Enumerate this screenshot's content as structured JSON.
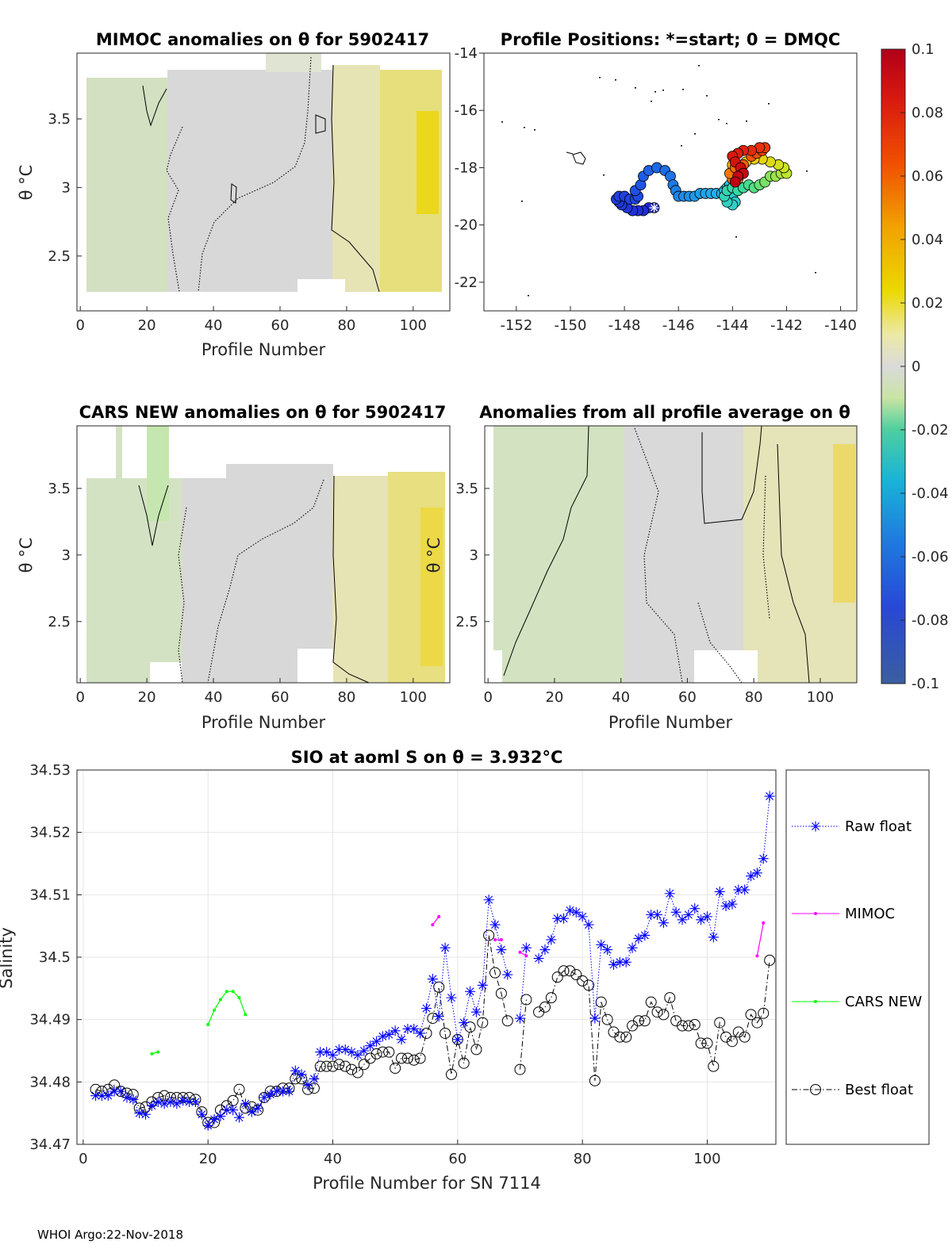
{
  "colors": {
    "raw": "#0000ff",
    "mimoc": "#ff00ff",
    "cars": "#00ff00",
    "best": "#000000",
    "grid": "#e6e6e6",
    "axis": "#262626"
  },
  "chart_data": [
    {
      "id": "mimoc",
      "type": "heatmap",
      "title": "MIMOC anomalies on θ  for 5902417",
      "xlabel": "Profile Number",
      "ylabel": "θ °C",
      "xlim": [
        -1,
        111
      ],
      "ylim": [
        2.1,
        3.98
      ],
      "xticks": [
        0,
        20,
        40,
        60,
        80,
        100
      ],
      "yticks": [
        2.5,
        3,
        3.5
      ]
    },
    {
      "id": "positions",
      "type": "scatter",
      "title": "Profile Positions: *=start; 0 = DMQC",
      "xlabel": "",
      "ylabel": "",
      "xlim": [
        -153.2,
        -139.4
      ],
      "ylim": [
        -23,
        -14
      ],
      "xticks": [
        -152,
        -150,
        -148,
        -146,
        -144,
        -142,
        -140
      ],
      "yticks": [
        -14,
        -16,
        -18,
        -20,
        -22
      ],
      "track": [
        [
          -146.9,
          -19.4
        ],
        [
          -147.1,
          -19.4
        ],
        [
          -147.3,
          -19.5
        ],
        [
          -147.5,
          -19.5
        ],
        [
          -147.7,
          -19.5
        ],
        [
          -147.9,
          -19.4
        ],
        [
          -148.1,
          -19.3
        ],
        [
          -148.2,
          -19.2
        ],
        [
          -148.3,
          -19.1
        ],
        [
          -148.2,
          -19.0
        ],
        [
          -148.0,
          -19.0
        ],
        [
          -147.8,
          -19.1
        ],
        [
          -147.6,
          -19.1
        ],
        [
          -147.5,
          -19.0
        ],
        [
          -147.6,
          -18.8
        ],
        [
          -147.4,
          -18.6
        ],
        [
          -147.3,
          -18.3
        ],
        [
          -147.1,
          -18.1
        ],
        [
          -146.8,
          -18.0
        ],
        [
          -146.5,
          -18.1
        ],
        [
          -146.3,
          -18.3
        ],
        [
          -146.2,
          -18.6
        ],
        [
          -146.1,
          -18.8
        ],
        [
          -146.0,
          -19.0
        ],
        [
          -145.8,
          -19.0
        ],
        [
          -145.6,
          -19.0
        ],
        [
          -145.4,
          -19.0
        ],
        [
          -145.2,
          -18.9
        ],
        [
          -145.0,
          -18.9
        ],
        [
          -144.8,
          -18.9
        ],
        [
          -144.6,
          -18.9
        ],
        [
          -144.4,
          -18.9
        ],
        [
          -144.3,
          -18.8
        ],
        [
          -144.2,
          -18.7
        ],
        [
          -144.1,
          -18.6
        ],
        [
          -144.1,
          -18.8
        ],
        [
          -144.0,
          -19.0
        ],
        [
          -143.9,
          -19.2
        ],
        [
          -144.0,
          -19.3
        ],
        [
          -144.2,
          -19.2
        ],
        [
          -144.3,
          -19.0
        ],
        [
          -144.2,
          -18.8
        ],
        [
          -144.0,
          -18.7
        ],
        [
          -143.8,
          -18.8
        ],
        [
          -143.6,
          -18.7
        ],
        [
          -143.4,
          -18.6
        ],
        [
          -143.2,
          -18.7
        ],
        [
          -143.0,
          -18.6
        ],
        [
          -142.8,
          -18.5
        ],
        [
          -142.6,
          -18.3
        ],
        [
          -142.4,
          -18.3
        ],
        [
          -142.2,
          -18.2
        ],
        [
          -142.0,
          -18.2
        ],
        [
          -142.1,
          -18.0
        ],
        [
          -142.3,
          -17.9
        ],
        [
          -142.6,
          -17.8
        ],
        [
          -142.9,
          -17.7
        ],
        [
          -143.2,
          -17.7
        ],
        [
          -143.5,
          -17.8
        ],
        [
          -143.8,
          -17.9
        ],
        [
          -144.0,
          -17.9
        ],
        [
          -143.9,
          -18.1
        ],
        [
          -143.7,
          -18.2
        ],
        [
          -143.8,
          -18.4
        ],
        [
          -144.0,
          -18.4
        ],
        [
          -144.1,
          -18.2
        ],
        [
          -143.9,
          -18.0
        ],
        [
          -143.6,
          -17.9
        ],
        [
          -143.3,
          -17.6
        ],
        [
          -143.1,
          -17.5
        ],
        [
          -142.9,
          -17.4
        ],
        [
          -142.8,
          -17.3
        ],
        [
          -143.0,
          -17.3
        ],
        [
          -143.3,
          -17.4
        ],
        [
          -143.6,
          -17.4
        ],
        [
          -143.8,
          -17.5
        ],
        [
          -144.0,
          -17.6
        ],
        [
          -143.9,
          -17.8
        ],
        [
          -143.7,
          -18.0
        ],
        [
          -143.6,
          -18.2
        ],
        [
          -143.8,
          -18.3
        ],
        [
          -143.9,
          -18.5
        ]
      ]
    },
    {
      "id": "cars",
      "type": "heatmap",
      "title": "CARS NEW anomalies on θ for 5902417",
      "xlabel": "Profile Number",
      "ylabel": "θ °C",
      "xlim": [
        -1,
        111
      ],
      "ylim": [
        2.04,
        3.97
      ],
      "xticks": [
        0,
        20,
        40,
        60,
        80,
        100
      ],
      "yticks": [
        2.5,
        3,
        3.5
      ]
    },
    {
      "id": "avg",
      "type": "heatmap",
      "title": "Anomalies from all profile average on θ",
      "xlabel": "Profile Number",
      "ylabel": "θ °C",
      "xlim": [
        -1,
        111
      ],
      "ylim": [
        2.04,
        3.97
      ],
      "xticks": [
        0,
        20,
        40,
        60,
        80,
        100
      ],
      "yticks": [
        2.5,
        3,
        3.5
      ]
    },
    {
      "id": "colorbar",
      "type": "heatmap",
      "range": [
        -0.1,
        0.1
      ],
      "ticks": [
        "0.1",
        "0.08",
        "0.06",
        "0.04",
        "0.02",
        "0",
        "-0.02",
        "-0.04",
        "-0.06",
        "-0.08",
        "-0.1"
      ]
    },
    {
      "id": "salinity",
      "type": "line",
      "title": "SIO at aoml S on θ = 3.932°C",
      "xlabel": "Profile Number for SN 7114",
      "ylabel": "Salinity",
      "xlim": [
        -1,
        111
      ],
      "ylim": [
        34.47,
        34.53
      ],
      "xticks": [
        0,
        20,
        40,
        60,
        80,
        100
      ],
      "yticks": [
        "34.47",
        "34.48",
        "34.49",
        "34.5",
        "34.51",
        "34.52",
        "34.53"
      ],
      "x": [
        2,
        3,
        4,
        5,
        6,
        7,
        8,
        9,
        10,
        11,
        12,
        13,
        14,
        15,
        16,
        17,
        18,
        19,
        20,
        21,
        22,
        23,
        24,
        25,
        26,
        27,
        28,
        29,
        30,
        31,
        32,
        33,
        34,
        35,
        36,
        37,
        38,
        39,
        40,
        41,
        42,
        43,
        44,
        45,
        46,
        47,
        48,
        49,
        50,
        51,
        52,
        53,
        54,
        55,
        56,
        57,
        58,
        59,
        60,
        61,
        62,
        63,
        64,
        65,
        66,
        67,
        68,
        69,
        70,
        71,
        72,
        73,
        74,
        75,
        76,
        77,
        78,
        79,
        80,
        81,
        82,
        83,
        84,
        85,
        86,
        87,
        88,
        89,
        90,
        91,
        92,
        93,
        94,
        95,
        96,
        97,
        98,
        99,
        100,
        101,
        102,
        103,
        104,
        105,
        106,
        107,
        108,
        109,
        110
      ],
      "series": [
        {
          "name": "Raw float",
          "style": "dotted-star",
          "values": [
            34.4778,
            34.4778,
            34.4778,
            34.4785,
            34.4785,
            34.4775,
            34.4772,
            34.475,
            34.4748,
            34.4762,
            34.4768,
            34.4765,
            34.4768,
            34.4765,
            34.477,
            34.4768,
            34.4768,
            34.4748,
            34.473,
            34.474,
            34.4745,
            34.4755,
            34.4755,
            34.4743,
            34.4765,
            34.4752,
            34.4758,
            34.4775,
            34.478,
            34.4785,
            34.4785,
            34.4785,
            34.4818,
            34.4812,
            34.4795,
            34.4805,
            34.4848,
            34.4848,
            34.4843,
            34.4852,
            34.4852,
            34.4848,
            34.4843,
            34.485,
            34.4858,
            34.4865,
            34.4873,
            34.4876,
            34.4882,
            34.4868,
            34.4885,
            34.4885,
            34.4878,
            34.4918,
            34.4965,
            34.4905,
            34.5015,
            34.4935,
            34.4868,
            34.4895,
            34.4945,
            34.4912,
            34.4955,
            34.5092,
            34.5052,
            34.5012,
            34.4972,
            null,
            34.4902,
            34.5015,
            null,
            34.4998,
            34.5012,
            34.5028,
            34.5062,
            34.5062,
            34.5075,
            34.5072,
            34.5065,
            34.5052,
            34.4902,
            34.502,
            34.5012,
            34.4988,
            34.4992,
            34.4992,
            34.5015,
            34.503,
            34.5035,
            34.5068,
            34.5068,
            34.5055,
            34.5102,
            34.5072,
            34.506,
            34.5068,
            34.5078,
            34.506,
            34.5065,
            34.5032,
            34.5105,
            34.5082,
            34.5085,
            34.5108,
            34.5108,
            34.513,
            34.5135,
            34.5158,
            34.5258
          ]
        },
        {
          "name": "MIMOC",
          "style": "solid-dot",
          "segments": [
            {
              "x": [
                56,
                57
              ],
              "y": [
                34.5052,
                34.5065
              ]
            },
            {
              "x": [
                66,
                67
              ],
              "y": [
                34.5028,
                34.5028
              ]
            },
            {
              "x": [
                70,
                71
              ],
              "y": [
                34.5008,
                34.5002
              ]
            },
            {
              "x": [
                108,
                109
              ],
              "y": [
                34.5002,
                34.5055
              ]
            }
          ]
        },
        {
          "name": "CARS NEW",
          "style": "solid-dot",
          "segments": [
            {
              "x": [
                11,
                12
              ],
              "y": [
                34.4845,
                34.4848
              ]
            },
            {
              "x": [
                20,
                21,
                22,
                23,
                24,
                25,
                26
              ],
              "y": [
                34.4892,
                34.4915,
                34.4932,
                34.4945,
                34.4945,
                34.4935,
                34.4908
              ]
            }
          ]
        },
        {
          "name": "Best float",
          "style": "dashdot-circle",
          "values": [
            34.4788,
            34.4785,
            34.4788,
            34.4795,
            34.4785,
            34.4782,
            34.478,
            34.4758,
            34.476,
            34.4768,
            34.4775,
            34.4778,
            34.4775,
            34.4775,
            34.4775,
            34.4775,
            34.4772,
            34.4752,
            34.4735,
            34.4735,
            34.4755,
            34.4762,
            34.477,
            34.4788,
            34.4758,
            34.476,
            34.4755,
            34.4775,
            34.4785,
            34.4785,
            34.479,
            34.479,
            34.4805,
            34.4805,
            34.4788,
            34.479,
            34.4825,
            34.4825,
            34.4825,
            34.4828,
            34.4825,
            34.482,
            34.4815,
            34.4828,
            34.4838,
            34.4845,
            34.4848,
            34.4848,
            34.4822,
            34.4838,
            34.4838,
            34.4835,
            34.4838,
            34.4878,
            34.4902,
            34.4952,
            34.4878,
            34.4812,
            34.4868,
            34.483,
            34.4888,
            34.4852,
            34.4895,
            34.5035,
            34.4975,
            34.4942,
            34.4898,
            null,
            34.482,
            34.4932,
            null,
            34.4912,
            34.492,
            34.4935,
            34.4968,
            34.4978,
            34.4978,
            34.4972,
            34.4962,
            34.4955,
            34.4802,
            34.4928,
            34.49,
            34.488,
            34.4872,
            34.4872,
            34.489,
            34.4898,
            34.4898,
            34.4928,
            34.4912,
            34.4908,
            34.4935,
            34.4898,
            34.489,
            34.489,
            34.4892,
            34.4862,
            34.4862,
            34.4825,
            34.4895,
            34.4872,
            34.4865,
            34.488,
            34.4872,
            34.4908,
            34.4895,
            34.491,
            34.4995
          ]
        }
      ]
    }
  ],
  "footer": "WHOI Argo:22-Nov-2018"
}
